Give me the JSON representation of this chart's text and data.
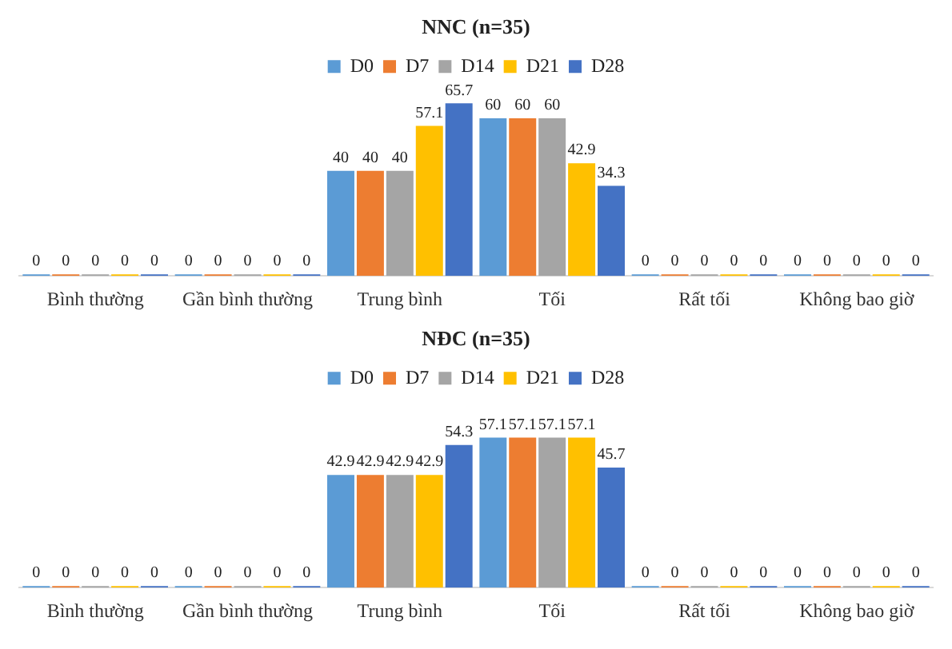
{
  "chart_data": [
    {
      "type": "bar",
      "title": "NNC (n=35)",
      "categories": [
        "Bình thường",
        "Gần bình thường",
        "Trung bình",
        "Tối",
        "Rất tối",
        "Không bao giờ"
      ],
      "series": [
        {
          "name": "D0",
          "color": "#5b9bd5",
          "values": [
            0,
            0,
            40,
            60,
            0,
            0
          ]
        },
        {
          "name": "D7",
          "color": "#ed7d31",
          "values": [
            0,
            0,
            40,
            60,
            0,
            0
          ]
        },
        {
          "name": "D14",
          "color": "#a5a5a5",
          "values": [
            0,
            0,
            40,
            60,
            0,
            0
          ]
        },
        {
          "name": "D21",
          "color": "#ffc000",
          "values": [
            0,
            0,
            57.1,
            42.9,
            0,
            0
          ]
        },
        {
          "name": "D28",
          "color": "#4472c4",
          "values": [
            0,
            0,
            65.7,
            34.3,
            0,
            0
          ]
        }
      ],
      "data_labels": true,
      "legend": "top",
      "grid": false,
      "tick_labels": "x"
    },
    {
      "type": "bar",
      "title": "NĐC (n=35)",
      "categories": [
        "Bình thường",
        "Gần bình thường",
        "Trung bình",
        "Tối",
        "Rất tối",
        "Không bao giờ"
      ],
      "series": [
        {
          "name": "D0",
          "color": "#5b9bd5",
          "values": [
            0,
            0,
            42.9,
            57.1,
            0,
            0
          ]
        },
        {
          "name": "D7",
          "color": "#ed7d31",
          "values": [
            0,
            0,
            42.9,
            57.1,
            0,
            0
          ]
        },
        {
          "name": "D14",
          "color": "#a5a5a5",
          "values": [
            0,
            0,
            42.9,
            57.1,
            0,
            0
          ]
        },
        {
          "name": "D21",
          "color": "#ffc000",
          "values": [
            0,
            0,
            42.9,
            57.1,
            0,
            0
          ]
        },
        {
          "name": "D28",
          "color": "#4472c4",
          "values": [
            0,
            0,
            54.3,
            45.7,
            0,
            0
          ]
        }
      ],
      "data_labels": true,
      "legend": "top",
      "grid": false,
      "tick_labels": "x"
    }
  ]
}
